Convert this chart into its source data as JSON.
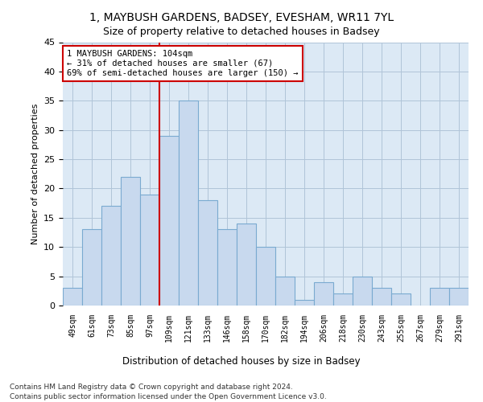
{
  "title1": "1, MAYBUSH GARDENS, BADSEY, EVESHAM, WR11 7YL",
  "title2": "Size of property relative to detached houses in Badsey",
  "xlabel": "Distribution of detached houses by size in Badsey",
  "ylabel": "Number of detached properties",
  "categories": [
    "49sqm",
    "61sqm",
    "73sqm",
    "85sqm",
    "97sqm",
    "109sqm",
    "121sqm",
    "133sqm",
    "146sqm",
    "158sqm",
    "170sqm",
    "182sqm",
    "194sqm",
    "206sqm",
    "218sqm",
    "230sqm",
    "243sqm",
    "255sqm",
    "267sqm",
    "279sqm",
    "291sqm"
  ],
  "values": [
    3,
    13,
    17,
    22,
    19,
    29,
    35,
    18,
    13,
    14,
    10,
    5,
    1,
    4,
    2,
    5,
    3,
    2,
    0,
    3,
    3
  ],
  "bar_color": "#c8d9ee",
  "bar_edge_color": "#7aaad0",
  "vline_x": 4.5,
  "annotation_title": "1 MAYBUSH GARDENS: 104sqm",
  "annotation_line1": "← 31% of detached houses are smaller (67)",
  "annotation_line2": "69% of semi-detached houses are larger (150) →",
  "annotation_box_color": "#ffffff",
  "annotation_box_edge": "#cc0000",
  "vline_color": "#cc0000",
  "ylim": [
    0,
    45
  ],
  "yticks": [
    0,
    5,
    10,
    15,
    20,
    25,
    30,
    35,
    40,
    45
  ],
  "footer1": "Contains HM Land Registry data © Crown copyright and database right 2024.",
  "footer2": "Contains public sector information licensed under the Open Government Licence v3.0.",
  "background_color": "#ffffff",
  "plot_bg_color": "#dce9f5",
  "grid_color": "#b0c4d8"
}
